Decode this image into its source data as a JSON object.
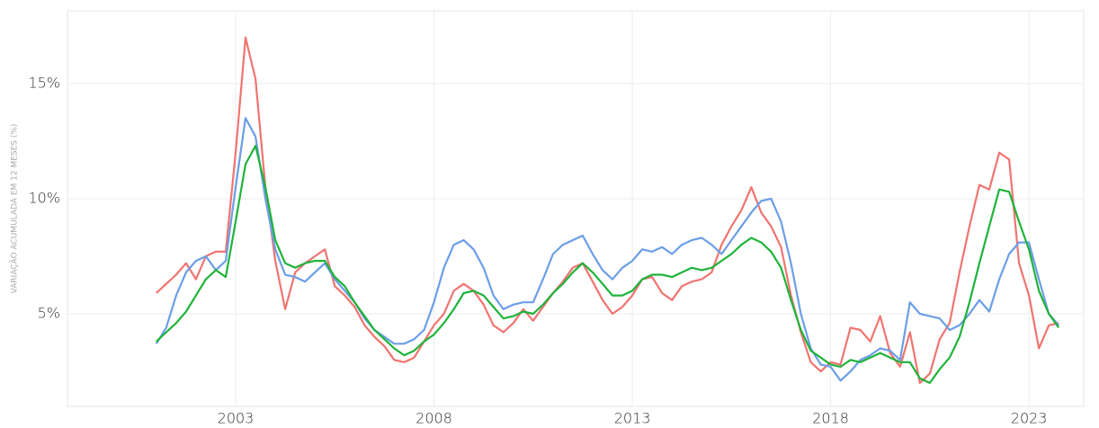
{
  "chart_data": {
    "type": "line",
    "ylabel": "VARIAÇÃO ACUMULADA EM 12 MESES (%)",
    "x": [
      2001.0,
      2001.25,
      2001.5,
      2001.75,
      2002.0,
      2002.25,
      2002.5,
      2002.75,
      2003.0,
      2003.25,
      2003.5,
      2003.75,
      2004.0,
      2004.25,
      2004.5,
      2004.75,
      2005.0,
      2005.25,
      2005.5,
      2005.75,
      2006.0,
      2006.25,
      2006.5,
      2006.75,
      2007.0,
      2007.25,
      2007.5,
      2007.75,
      2008.0,
      2008.25,
      2008.5,
      2008.75,
      2009.0,
      2009.25,
      2009.5,
      2009.75,
      2010.0,
      2010.25,
      2010.5,
      2010.75,
      2011.0,
      2011.25,
      2011.5,
      2011.75,
      2012.0,
      2012.25,
      2012.5,
      2012.75,
      2013.0,
      2013.25,
      2013.5,
      2013.75,
      2014.0,
      2014.25,
      2014.5,
      2014.75,
      2015.0,
      2015.25,
      2015.5,
      2015.75,
      2016.0,
      2016.25,
      2016.5,
      2016.75,
      2017.0,
      2017.25,
      2017.5,
      2017.75,
      2018.0,
      2018.25,
      2018.5,
      2018.75,
      2019.0,
      2019.25,
      2019.5,
      2019.75,
      2020.0,
      2020.25,
      2020.5,
      2020.75,
      2021.0,
      2021.25,
      2021.5,
      2021.75,
      2022.0,
      2022.25,
      2022.5,
      2022.75,
      2023.0,
      2023.25,
      2023.5,
      2023.75
    ],
    "series": [
      {
        "color": "#f07470",
        "values": [
          5.9,
          6.3,
          6.7,
          7.2,
          6.5,
          7.5,
          7.7,
          7.7,
          12.0,
          17.0,
          15.2,
          10.5,
          7.3,
          5.2,
          6.8,
          7.2,
          7.5,
          7.8,
          6.2,
          5.8,
          5.3,
          4.5,
          4.0,
          3.6,
          3.0,
          2.9,
          3.1,
          3.8,
          4.5,
          5.0,
          6.0,
          6.3,
          6.0,
          5.4,
          4.5,
          4.2,
          4.6,
          5.2,
          4.7,
          5.3,
          5.9,
          6.4,
          7.0,
          7.2,
          6.4,
          5.6,
          5.0,
          5.3,
          5.8,
          6.5,
          6.6,
          5.9,
          5.6,
          6.2,
          6.4,
          6.5,
          6.8,
          8.0,
          8.8,
          9.5,
          10.5,
          9.4,
          8.8,
          7.9,
          5.8,
          4.2,
          2.9,
          2.5,
          2.9,
          2.8,
          4.4,
          4.3,
          3.8,
          4.9,
          3.3,
          2.7,
          4.2,
          2.0,
          2.4,
          3.9,
          4.6,
          6.8,
          8.8,
          10.6,
          10.4,
          12.0,
          11.7,
          7.2,
          5.8,
          3.5,
          4.5,
          4.6
        ]
      },
      {
        "color": "#6b9ee8",
        "values": [
          3.7,
          4.4,
          5.8,
          6.8,
          7.3,
          7.5,
          6.9,
          7.3,
          10.5,
          13.5,
          12.7,
          10.0,
          7.8,
          6.7,
          6.6,
          6.4,
          6.8,
          7.2,
          6.5,
          6.0,
          5.5,
          4.8,
          4.3,
          4.0,
          3.7,
          3.7,
          3.9,
          4.3,
          5.5,
          7.0,
          8.0,
          8.2,
          7.8,
          7.0,
          5.8,
          5.2,
          5.4,
          5.5,
          5.5,
          6.5,
          7.6,
          8.0,
          8.2,
          8.4,
          7.6,
          6.9,
          6.5,
          7.0,
          7.3,
          7.8,
          7.7,
          7.9,
          7.6,
          8.0,
          8.2,
          8.3,
          8.0,
          7.6,
          8.2,
          8.8,
          9.4,
          9.9,
          10.0,
          9.0,
          7.2,
          5.0,
          3.5,
          2.8,
          2.7,
          2.1,
          2.5,
          3.0,
          3.2,
          3.5,
          3.4,
          3.0,
          5.5,
          5.0,
          4.9,
          4.8,
          4.3,
          4.5,
          5.0,
          5.6,
          5.1,
          6.5,
          7.6,
          8.1,
          8.1,
          6.5,
          5.0,
          4.5
        ]
      },
      {
        "color": "#1fb33a",
        "values": [
          3.8,
          4.2,
          4.6,
          5.1,
          5.8,
          6.5,
          6.9,
          6.6,
          9.0,
          11.5,
          12.3,
          10.5,
          8.2,
          7.2,
          7.0,
          7.2,
          7.3,
          7.3,
          6.6,
          6.2,
          5.5,
          4.9,
          4.3,
          3.9,
          3.5,
          3.2,
          3.4,
          3.8,
          4.1,
          4.6,
          5.2,
          5.9,
          6.0,
          5.8,
          5.3,
          4.8,
          4.9,
          5.1,
          5.0,
          5.4,
          5.9,
          6.3,
          6.8,
          7.2,
          6.8,
          6.3,
          5.8,
          5.8,
          6.0,
          6.5,
          6.7,
          6.7,
          6.6,
          6.8,
          7.0,
          6.9,
          7.0,
          7.3,
          7.6,
          8.0,
          8.3,
          8.1,
          7.7,
          7.0,
          5.6,
          4.3,
          3.4,
          3.1,
          2.8,
          2.7,
          3.0,
          2.9,
          3.1,
          3.3,
          3.1,
          2.9,
          2.9,
          2.2,
          2.0,
          2.6,
          3.1,
          4.0,
          5.5,
          7.2,
          8.8,
          10.4,
          10.3,
          9.0,
          7.8,
          6.0,
          5.0,
          4.4
        ]
      }
    ],
    "xlim": [
      1998.76,
      2024.38
    ],
    "xticks": [
      2003,
      2008,
      2013,
      2018,
      2023
    ],
    "ylim": [
      0.98,
      18.16
    ],
    "yticks": [
      {
        "value": 5,
        "label": "5%"
      },
      {
        "value": 10,
        "label": "10%"
      },
      {
        "value": 15,
        "label": "15%"
      }
    ],
    "grid": true
  }
}
